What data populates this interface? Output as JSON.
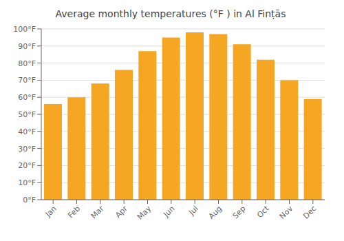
{
  "chart_data": {
    "type": "bar",
    "title": "Average monthly temperatures (°F ) in Al Finṭās",
    "categories": [
      "Jan",
      "Feb",
      "Mar",
      "Apr",
      "May",
      "Jun",
      "Jul",
      "Aug",
      "Sep",
      "Oct",
      "Nov",
      "Dec"
    ],
    "values": [
      56,
      60,
      68,
      76,
      87,
      95,
      98,
      97,
      91,
      82,
      70,
      59
    ],
    "color": "#F5A623",
    "ylim": [
      0,
      100
    ],
    "yticks": [
      {
        "value": 0,
        "label": "0°F"
      },
      {
        "value": 10,
        "label": "10°F"
      },
      {
        "value": 20,
        "label": "20°F"
      },
      {
        "value": 30,
        "label": "30°F"
      },
      {
        "value": 40,
        "label": "40°F"
      },
      {
        "value": 50,
        "label": "50°F"
      },
      {
        "value": 60,
        "label": "60°F"
      },
      {
        "value": 70,
        "label": "70°F"
      },
      {
        "value": 80,
        "label": "80°F"
      },
      {
        "value": 90,
        "label": "90°F"
      },
      {
        "value": 100,
        "label": "100°F"
      }
    ],
    "grid": true
  }
}
